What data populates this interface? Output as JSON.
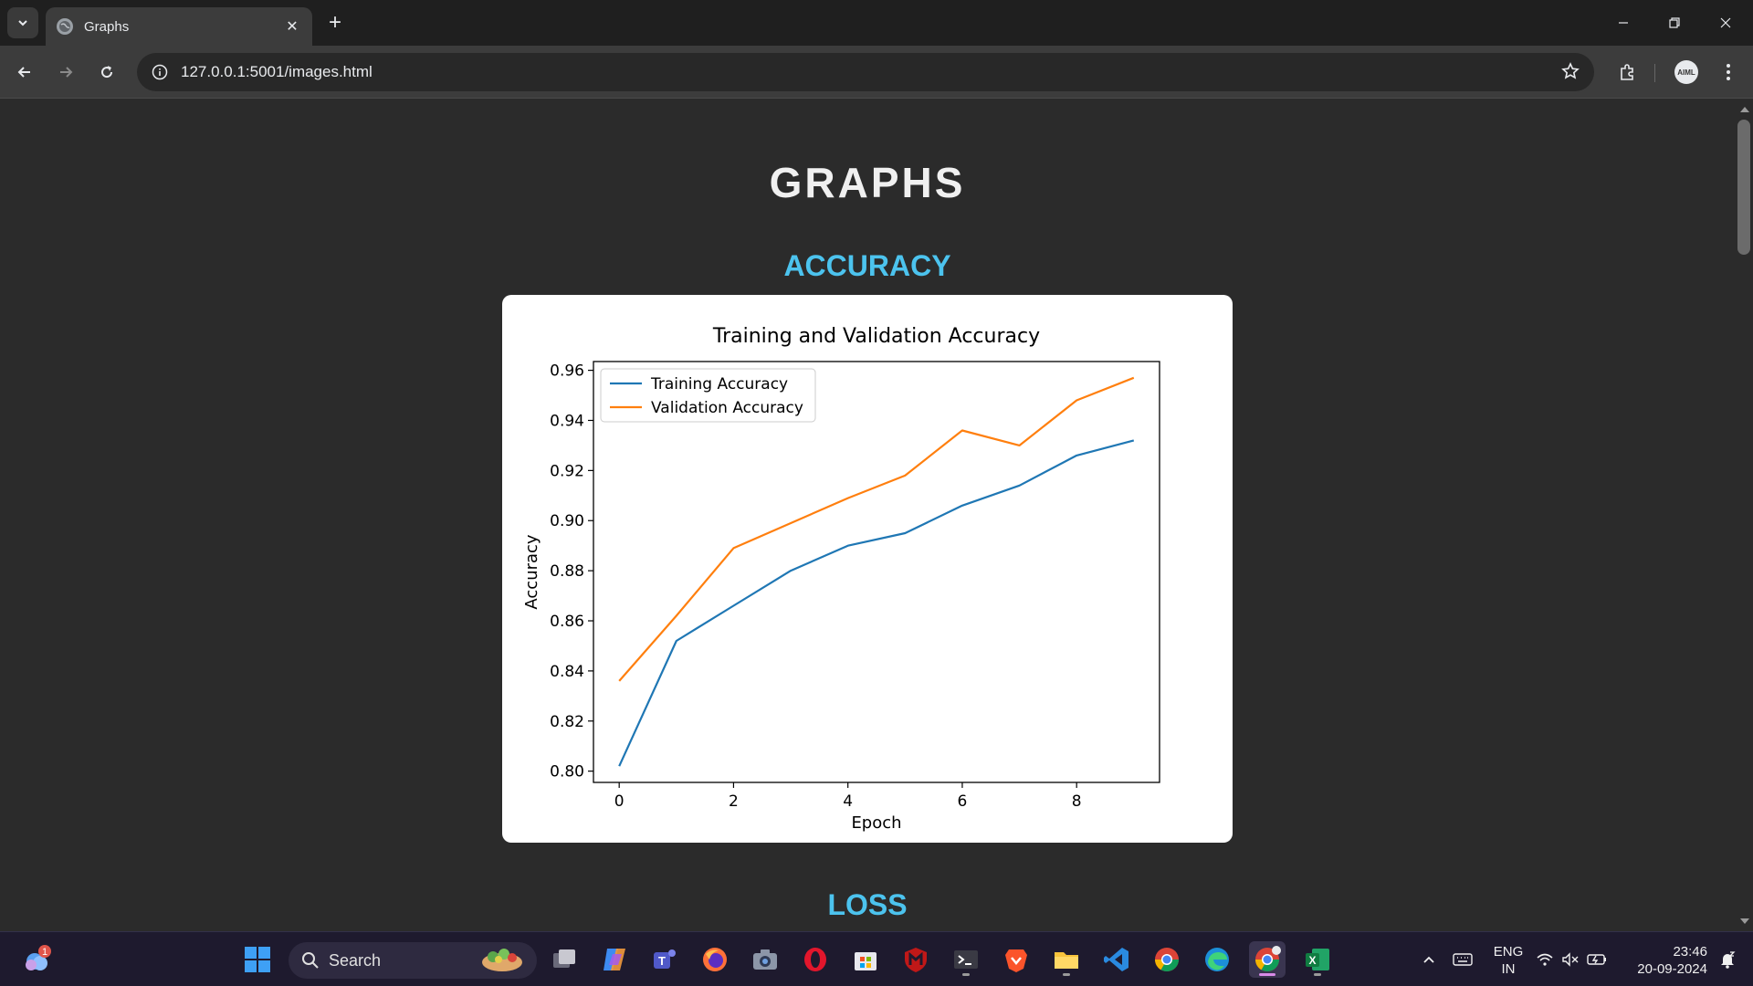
{
  "browser": {
    "tab_title": "Graphs",
    "url": "127.0.0.1:5001/images.html",
    "avatar_text": "AIML"
  },
  "page": {
    "title": "GRAPHS",
    "accuracy_heading": "ACCURACY",
    "loss_heading": "LOSS"
  },
  "chart_data": {
    "type": "line",
    "title": "Training and Validation Accuracy",
    "xlabel": "Epoch",
    "ylabel": "Accuracy",
    "x": [
      0,
      1,
      2,
      3,
      4,
      5,
      6,
      7,
      8,
      9
    ],
    "xlim": [
      -0.45,
      9.45
    ],
    "ylim": [
      0.7955,
      0.9635
    ],
    "xticks": [
      0,
      2,
      4,
      6,
      8
    ],
    "yticks": [
      0.8,
      0.82,
      0.84,
      0.86,
      0.88,
      0.9,
      0.92,
      0.94,
      0.96
    ],
    "grid": false,
    "legend": "upper-left",
    "series": [
      {
        "name": "Training Accuracy",
        "color": "#1f77b4",
        "values": [
          0.802,
          0.852,
          0.866,
          0.88,
          0.89,
          0.895,
          0.906,
          0.914,
          0.926,
          0.932
        ]
      },
      {
        "name": "Validation Accuracy",
        "color": "#ff7f0e",
        "values": [
          0.836,
          0.862,
          0.889,
          0.899,
          0.909,
          0.918,
          0.936,
          0.93,
          0.948,
          0.957
        ]
      }
    ]
  },
  "taskbar": {
    "search_label": "Search",
    "weather_badge": "1",
    "lang_top": "ENG",
    "lang_bottom": "IN",
    "time": "23:46",
    "date": "20-09-2024"
  }
}
